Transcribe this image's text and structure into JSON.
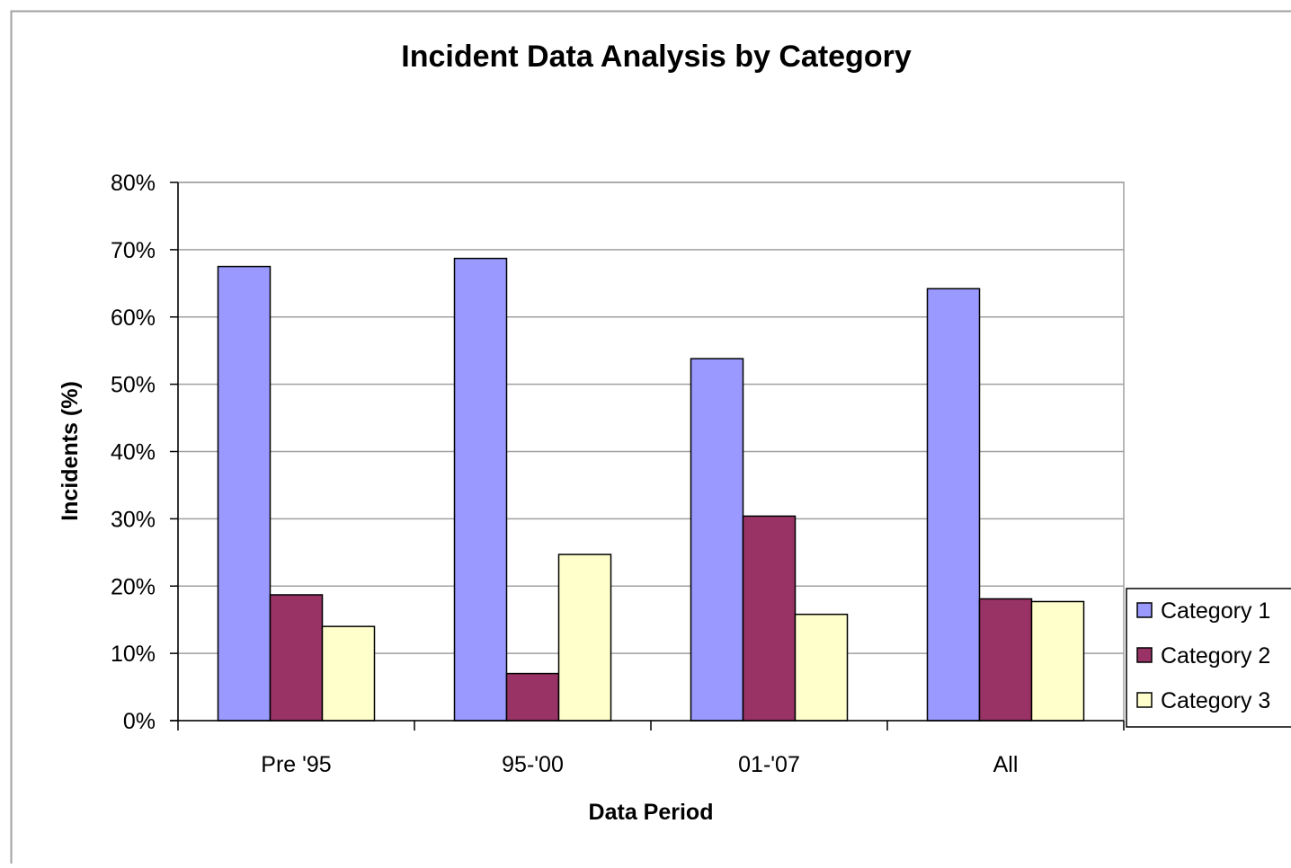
{
  "chart_data": {
    "type": "bar",
    "title": "Incident Data Analysis by Category",
    "xlabel": "Data Period",
    "ylabel": "Incidents (%)",
    "categories": [
      "Pre '95",
      "95-'00",
      "01-'07",
      "All"
    ],
    "series": [
      {
        "name": "Category 1",
        "color": "#9999ff",
        "values": [
          67.5,
          68.7,
          53.8,
          64.2
        ]
      },
      {
        "name": "Category 2",
        "color": "#993366",
        "values": [
          18.7,
          7.0,
          30.4,
          18.1
        ]
      },
      {
        "name": "Category 3",
        "color": "#ffffcc",
        "values": [
          14.0,
          24.7,
          15.8,
          17.7
        ]
      }
    ],
    "ylim": [
      0,
      80
    ],
    "yticks": [
      0,
      10,
      20,
      30,
      40,
      50,
      60,
      70,
      80
    ],
    "ytick_labels": [
      "0%",
      "10%",
      "20%",
      "30%",
      "40%",
      "50%",
      "60%",
      "70%",
      "80%"
    ],
    "grid": true,
    "legend_position": "right"
  }
}
